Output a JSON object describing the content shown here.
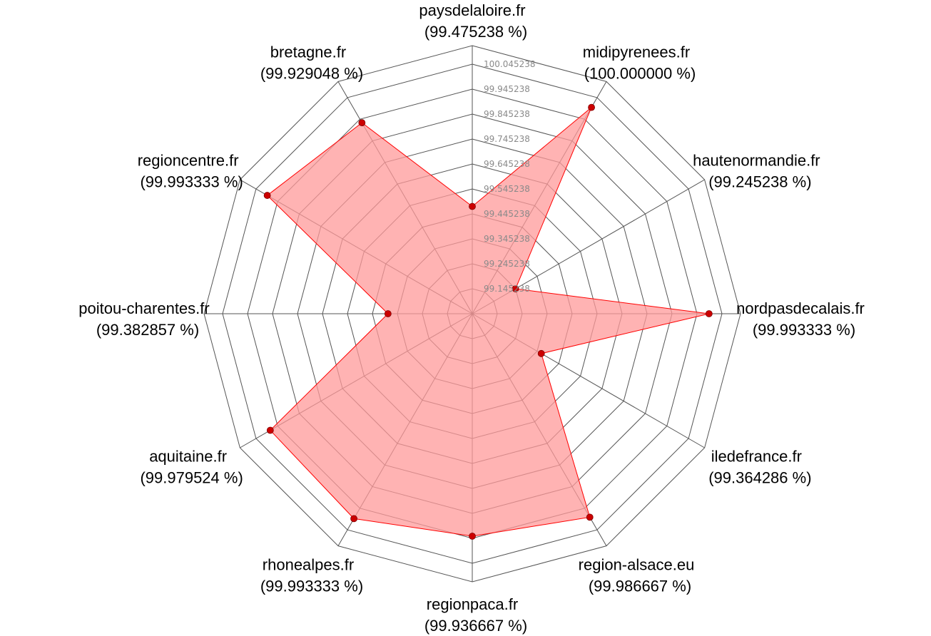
{
  "chart_data": {
    "type": "radar",
    "title": "",
    "categories": [
      "paysdelaloire.fr",
      "midipyrenees.fr",
      "hautenormandie.fr",
      "nordpasdecalais.fr",
      "iledefrance.fr",
      "region-alsace.eu",
      "regionpaca.fr",
      "rhonealpes.fr",
      "aquitaine.fr",
      "poitou-charentes.fr",
      "regioncentre.fr",
      "bretagne.fr"
    ],
    "value_labels": [
      "(99.475238 %)",
      "(100.000000 %)",
      "(99.245238 %)",
      "(99.993333 %)",
      "(99.364286 %)",
      "(99.986667 %)",
      "(99.936667 %)",
      "(99.993333 %)",
      "(99.979524 %)",
      "(99.382857 %)",
      "(99.993333 %)",
      "(99.929048 %)"
    ],
    "series": [
      {
        "values": [
          99.475238,
          100.0,
          99.245238,
          99.993333,
          99.364286,
          99.986667,
          99.936667,
          99.993333,
          99.979524,
          99.382857,
          99.993333,
          99.929048
        ]
      }
    ],
    "rlim": [
      99.045238,
      100.045238
    ],
    "tick_labels": [
      "99.145238",
      "99.245238",
      "99.345238",
      "99.445238",
      "99.545238",
      "99.645238",
      "99.745238",
      "99.845238",
      "99.945238",
      "100.045238"
    ],
    "grid": true,
    "colors": {
      "fill": "#ff9999",
      "line": "#ff0000",
      "marker": "#cc0000",
      "grid": "#555555"
    }
  }
}
